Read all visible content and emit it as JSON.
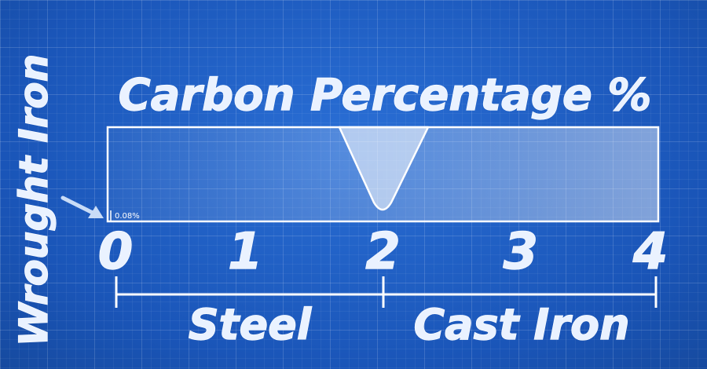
{
  "title": "Carbon Percentage %",
  "side_label": "Wrought Iron",
  "marker_label": "0.08%",
  "scale": {
    "ticks": [
      "0",
      "1",
      "2",
      "3",
      "4"
    ],
    "domain": [
      0,
      4
    ],
    "boundary_value": 2,
    "wrought_iron_max": 0.08
  },
  "regions": [
    {
      "name": "Steel",
      "from": 0,
      "to": 2
    },
    {
      "name": "Cast Iron",
      "from": 2,
      "to": 4
    }
  ],
  "colors": {
    "background": "#1f5fc4",
    "line": "#ffffff",
    "text": "#eaf2ff"
  }
}
